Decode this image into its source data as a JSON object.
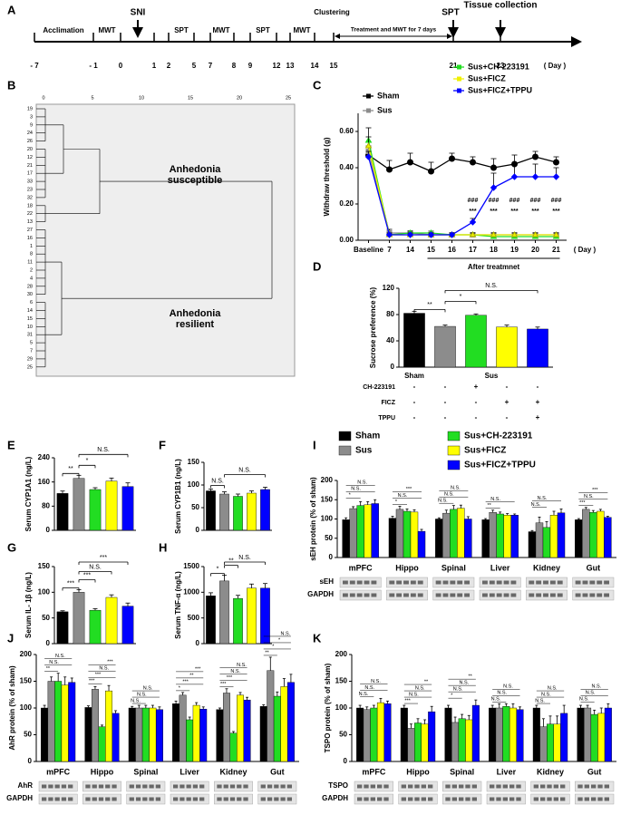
{
  "timeline": {
    "panel": "A",
    "ticks": [
      "- 7",
      "- 1",
      "0",
      "1",
      "2",
      "5",
      "7",
      "8",
      "9",
      "12",
      "13",
      "14",
      "15",
      "21",
      "23"
    ],
    "unit": "( Day )",
    "labels": [
      "Acclimation",
      "MWT",
      "SNI",
      "SPT",
      "MWT",
      "SPT",
      "MWT",
      "Clustering",
      "Treatment and MWT for 7 days",
      "SPT",
      "Tissue collection"
    ]
  },
  "dendrogram": {
    "panel": "B",
    "scale_ticks": [
      "0",
      "5",
      "10",
      "15",
      "20",
      "25"
    ],
    "leaves": [
      "19",
      "3",
      "9",
      "24",
      "26",
      "20",
      "12",
      "21",
      "17",
      "33",
      "23",
      "32",
      "18",
      "22",
      "13",
      "27",
      "16",
      "1",
      "8",
      "11",
      "2",
      "4",
      "28",
      "30",
      "6",
      "14",
      "15",
      "10",
      "31",
      "5",
      "7",
      "29",
      "25"
    ],
    "clusters": [
      "Anhedonia susceptible",
      "Anhedonia resilient"
    ]
  },
  "chart_data": [
    {
      "type": "line",
      "panel": "C",
      "y_label": "Withdraw threshold (g)",
      "x_unit": "( Day )",
      "x_group_label": "After treatmnet",
      "categories": [
        "Baseline",
        "7",
        "14",
        "15",
        "16",
        "17",
        "18",
        "19",
        "20",
        "21"
      ],
      "ylim": [
        0,
        0.7
      ],
      "yticks": [
        {
          "value": 0,
          "label": "0.00"
        },
        {
          "value": 0.2,
          "label": "0.20"
        },
        {
          "value": 0.4,
          "label": "0.40"
        },
        {
          "value": 0.6,
          "label": "0.60"
        }
      ],
      "series": [
        {
          "name": "Sham",
          "color": "#000000",
          "marker": "circle",
          "values": [
            0.47,
            0.39,
            0.43,
            0.38,
            0.45,
            0.43,
            0.4,
            0.42,
            0.46,
            0.43
          ],
          "errors": [
            0.03,
            0.05,
            0.05,
            0.05,
            0.03,
            0.03,
            0.05,
            0.05,
            0.03,
            0.03
          ]
        },
        {
          "name": "Sus",
          "color": "#8c8c8c",
          "marker": "square",
          "values": [
            0.49,
            0.04,
            0.04,
            0.03,
            0.03,
            0.03,
            0.03,
            0.03,
            0.03,
            0.03
          ],
          "errors": [
            0.03,
            0.02,
            0.01,
            0.01,
            0.01,
            0.01,
            0.01,
            0.01,
            0.01,
            0.01
          ]
        },
        {
          "name": "Sus+CH-223191",
          "color": "#22dd22",
          "marker": "triangle",
          "values": [
            0.55,
            0.03,
            0.04,
            0.04,
            0.03,
            0.03,
            0.02,
            0.02,
            0.02,
            0.02
          ],
          "errors": [
            0.07,
            0.01,
            0.01,
            0.01,
            0.01,
            0.01,
            0.01,
            0.01,
            0.01,
            0.01
          ]
        },
        {
          "name": "Sus+FICZ",
          "color": "#f0f000",
          "marker": "triangle",
          "values": [
            0.52,
            0.03,
            0.03,
            0.03,
            0.03,
            0.03,
            0.03,
            0.03,
            0.03,
            0.03
          ],
          "errors": [
            0.05,
            0.01,
            0.01,
            0.01,
            0.01,
            0.01,
            0.01,
            0.01,
            0.01,
            0.01
          ]
        },
        {
          "name": "Sus+FICZ+TPPU",
          "color": "#0000ff",
          "marker": "diamond",
          "values": [
            0.46,
            0.03,
            0.03,
            0.03,
            0.03,
            0.1,
            0.29,
            0.35,
            0.35,
            0.35
          ],
          "errors": [
            0.03,
            0.01,
            0.01,
            0.01,
            0.01,
            0.02,
            0.08,
            0.07,
            0.07,
            0.05
          ]
        }
      ],
      "sig_top": [
        null,
        null,
        null,
        null,
        null,
        "###",
        "###",
        "###",
        "###",
        "###"
      ],
      "sig_bottom": [
        null,
        null,
        null,
        null,
        null,
        "***",
        "***",
        "***",
        "***",
        "***"
      ]
    },
    {
      "type": "bar",
      "panel": "D",
      "y_label": "Sucrose preference (%)",
      "values": [
        82,
        62,
        79,
        61,
        58
      ],
      "errors": [
        3,
        2,
        2,
        3,
        3
      ],
      "colors": [
        "#000000",
        "#8c8c8c",
        "#22dd22",
        "#ffff00",
        "#0000ff"
      ],
      "ylim": [
        0,
        120
      ],
      "yticks": [
        0,
        40,
        80,
        120
      ],
      "significance": [
        "**",
        "*",
        "N.S."
      ],
      "group_labels": [
        "Sham",
        "Sus"
      ],
      "treatment_table": [
        {
          "label": "CH-223191",
          "cells": [
            "-",
            "-",
            "+",
            "-",
            "-"
          ]
        },
        {
          "label": "FICZ",
          "cells": [
            "-",
            "-",
            "-",
            "+",
            "+"
          ]
        },
        {
          "label": "TPPU",
          "cells": [
            "-",
            "-",
            "-",
            "-",
            "+"
          ]
        }
      ]
    },
    {
      "type": "bar",
      "panel": "E",
      "y_label": "Serum CYP1A1 (ng/L)",
      "values": [
        122,
        172,
        135,
        163,
        145
      ],
      "errors": [
        8,
        10,
        6,
        10,
        12
      ],
      "colors": [
        "#000000",
        "#8c8c8c",
        "#22dd22",
        "#ffff00",
        "#0000ff"
      ],
      "ylim": [
        0,
        240
      ],
      "yticks": [
        0,
        80,
        160,
        240
      ],
      "significance": [
        "**",
        "*",
        "N.S."
      ]
    },
    {
      "type": "bar",
      "panel": "F",
      "y_label": "Serum CYP1B1 (ng/L)",
      "values": [
        87,
        80,
        75,
        82,
        90
      ],
      "errors": [
        4,
        5,
        5,
        5,
        5
      ],
      "colors": [
        "#000000",
        "#8c8c8c",
        "#22dd22",
        "#ffff00",
        "#0000ff"
      ],
      "ylim": [
        0,
        150
      ],
      "yticks": [
        0,
        50,
        100,
        150
      ],
      "significance": [
        "N.S.",
        "N.S."
      ]
    },
    {
      "type": "bar",
      "panel": "G",
      "y_label": "Serum IL- 1β (ng/L)",
      "values": [
        62,
        100,
        65,
        90,
        73
      ],
      "errors": [
        2,
        5,
        3,
        5,
        6
      ],
      "colors": [
        "#000000",
        "#8c8c8c",
        "#22dd22",
        "#ffff00",
        "#0000ff"
      ],
      "ylim": [
        0,
        150
      ],
      "yticks": [
        0,
        50,
        100,
        150
      ],
      "significance": [
        "***",
        "***",
        "N.S.",
        "***"
      ]
    },
    {
      "type": "bar",
      "panel": "H",
      "y_label": "Serum TNF-α (ng/L)",
      "values": [
        930,
        1220,
        880,
        1080,
        1080
      ],
      "errors": [
        60,
        110,
        60,
        80,
        90
      ],
      "colors": [
        "#000000",
        "#8c8c8c",
        "#22dd22",
        "#ffff00",
        "#0000ff"
      ],
      "ylim": [
        0,
        1500
      ],
      "yticks": [
        0,
        500,
        1000,
        1500
      ],
      "significance": [
        "*",
        "**",
        "N.S."
      ]
    },
    {
      "type": "bar",
      "panel": "I",
      "y_label": "sEH protein (% of sham)",
      "blot_labels": [
        "sEH",
        "GAPDH"
      ],
      "categories": [
        "mPFC",
        "Hippo",
        "Spinal",
        "Liver",
        "Kidney",
        "Gut"
      ],
      "ylim": [
        0,
        200
      ],
      "yticks": [
        0,
        50,
        100,
        150,
        200
      ],
      "series": [
        {
          "name": "Sham",
          "color": "#000000",
          "values": [
            98,
            102,
            100,
            98,
            67,
            98
          ],
          "errors": [
            5,
            5,
            3,
            3,
            3,
            3
          ]
        },
        {
          "name": "Sus",
          "color": "#8c8c8c",
          "values": [
            127,
            125,
            115,
            117,
            90,
            125
          ],
          "errors": [
            5,
            8,
            8,
            6,
            15,
            5
          ]
        },
        {
          "name": "Sus+CH-223191",
          "color": "#22dd22",
          "values": [
            135,
            120,
            125,
            113,
            78,
            117
          ],
          "errors": [
            10,
            6,
            10,
            5,
            15,
            5
          ]
        },
        {
          "name": "Sus+FICZ",
          "color": "#ffff00",
          "values": [
            137,
            118,
            128,
            110,
            110,
            120
          ],
          "errors": [
            8,
            6,
            8,
            4,
            10,
            5
          ]
        },
        {
          "name": "Sus+FICZ+TPPU",
          "color": "#0000ff",
          "values": [
            140,
            68,
            100,
            110,
            116,
            104
          ],
          "errors": [
            10,
            5,
            6,
            3,
            10,
            3
          ]
        }
      ],
      "significance": [
        [
          "*",
          "N.S.",
          "N.S."
        ],
        [
          "*",
          "N.S.",
          "***"
        ],
        [
          "N.S.",
          "N.S.",
          "N.S."
        ],
        [
          "**",
          "N.S."
        ],
        [
          "N.S.",
          "N.S."
        ],
        [
          "***",
          "N.S.",
          "***"
        ]
      ]
    },
    {
      "type": "bar",
      "panel": "J",
      "y_label": "AhR protein (% of sham)",
      "blot_labels": [
        "AhR",
        "GAPDH"
      ],
      "categories": [
        "mPFC",
        "Hippo",
        "Spinal",
        "Liver",
        "Kidney",
        "Gut"
      ],
      "ylim": [
        0,
        200
      ],
      "yticks": [
        0,
        50,
        100,
        150,
        200
      ],
      "series": [
        {
          "color": "#000000",
          "values": [
            100,
            101,
            100,
            108,
            97,
            103
          ],
          "errors": [
            5,
            3,
            3,
            5,
            3,
            3
          ]
        },
        {
          "color": "#8c8c8c",
          "values": [
            150,
            135,
            100,
            124,
            128,
            170
          ],
          "errors": [
            8,
            5,
            5,
            5,
            8,
            25
          ]
        },
        {
          "color": "#22dd22",
          "values": [
            150,
            65,
            100,
            78,
            53,
            122
          ],
          "errors": [
            15,
            3,
            5,
            5,
            3,
            8
          ]
        },
        {
          "color": "#ffff00",
          "values": [
            143,
            132,
            100,
            105,
            124,
            140
          ],
          "errors": [
            15,
            10,
            5,
            5,
            5,
            15
          ]
        },
        {
          "color": "#0000ff",
          "values": [
            148,
            90,
            97,
            98,
            115,
            148
          ],
          "errors": [
            8,
            5,
            5,
            4,
            5,
            15
          ]
        }
      ],
      "significance": [
        [
          "**",
          "N.S.",
          "N.S."
        ],
        [
          "***",
          "***",
          "N.S.",
          "***"
        ],
        [
          "N.S.",
          "N.S.",
          "N.S."
        ],
        [
          "*",
          "***",
          "**",
          "***"
        ],
        [
          "***",
          "***",
          "N.S.",
          "N.S."
        ],
        [
          "**",
          "*",
          "*",
          "N.S."
        ]
      ]
    },
    {
      "type": "bar",
      "panel": "K",
      "y_label": "TSPO protein (% of sham)",
      "blot_labels": [
        "TSPO",
        "GAPDH"
      ],
      "categories": [
        "mPFC",
        "Hippo",
        "Spinal",
        "Liver",
        "Kidney",
        "Gut"
      ],
      "ylim": [
        0,
        200
      ],
      "yticks": [
        0,
        50,
        100,
        150,
        200
      ],
      "series": [
        {
          "color": "#000000",
          "values": [
            100,
            100,
            100,
            100,
            100,
            100
          ],
          "errors": [
            5,
            5,
            5,
            5,
            5,
            5
          ]
        },
        {
          "color": "#8c8c8c",
          "values": [
            97,
            62,
            73,
            100,
            65,
            100
          ],
          "errors": [
            5,
            8,
            10,
            8,
            15,
            5
          ]
        },
        {
          "color": "#22dd22",
          "values": [
            100,
            72,
            80,
            103,
            70,
            88
          ],
          "errors": [
            5,
            8,
            8,
            5,
            15,
            8
          ]
        },
        {
          "color": "#ffff00",
          "values": [
            110,
            70,
            78,
            100,
            70,
            90
          ],
          "errors": [
            8,
            8,
            8,
            8,
            15,
            10
          ]
        },
        {
          "color": "#0000ff",
          "values": [
            108,
            93,
            105,
            97,
            90,
            100
          ],
          "errors": [
            5,
            10,
            10,
            5,
            15,
            8
          ]
        }
      ],
      "significance": [
        [
          "N.S.",
          "N.S.",
          "N.S."
        ],
        [
          "***",
          "N.S.",
          "N.S.",
          "**"
        ],
        [
          "*",
          "N.S.",
          "N.S.",
          "**"
        ],
        [
          "N.S.",
          "N.S.",
          "N.S."
        ],
        [
          "N.S.",
          "N.S.",
          "N.S."
        ],
        [
          "N.S.",
          "N.S.",
          "N.S."
        ]
      ]
    }
  ]
}
